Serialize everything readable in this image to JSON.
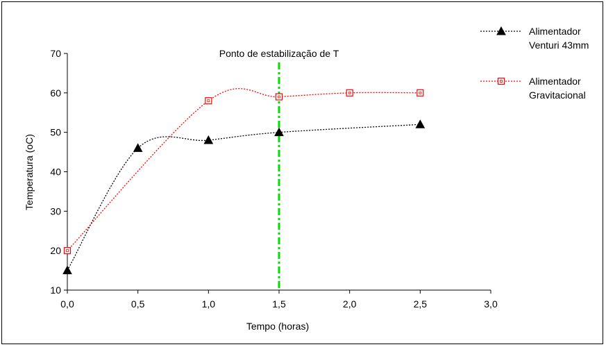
{
  "chart_data": {
    "type": "line",
    "xlabel": "Tempo (horas)",
    "ylabel": "Temperatura (oC)",
    "xlim": [
      0,
      3
    ],
    "ylim": [
      10,
      70
    ],
    "xticks": [
      0,
      0.5,
      1,
      1.5,
      2,
      2.5,
      3
    ],
    "xtick_labels": [
      "0,0",
      "0,5",
      "1,0",
      "1,5",
      "2,0",
      "2,5",
      "3,0"
    ],
    "yticks": [
      10,
      20,
      30,
      40,
      50,
      60,
      70
    ],
    "ytick_labels": [
      "10",
      "20",
      "30",
      "40",
      "50",
      "60",
      "70"
    ],
    "grid": false,
    "legend_position": "top-right",
    "series": [
      {
        "name": "Alimentador Venturi 43mm",
        "name_lines": [
          "Alimentador",
          "Venturi 43mm"
        ],
        "x": [
          0,
          0.5,
          1,
          1.5,
          2.5
        ],
        "y": [
          15,
          46,
          48,
          50,
          52
        ],
        "color": "#000000",
        "marker": "triangle",
        "line_style": "dotted"
      },
      {
        "name": "Alimentador Gravitacional",
        "name_lines": [
          "Alimentador",
          "Gravitacional"
        ],
        "x": [
          0,
          1,
          1.5,
          2,
          2.5
        ],
        "y": [
          20,
          58,
          59,
          60,
          60
        ],
        "color": "#ff0000",
        "marker": "square",
        "line_style": "dotted"
      }
    ],
    "annotations": [
      {
        "text": "Ponto de estabilização de T",
        "x": 1.5,
        "type": "vertical-line",
        "color": "#00dd00",
        "line_style": "dash-dot"
      }
    ]
  }
}
